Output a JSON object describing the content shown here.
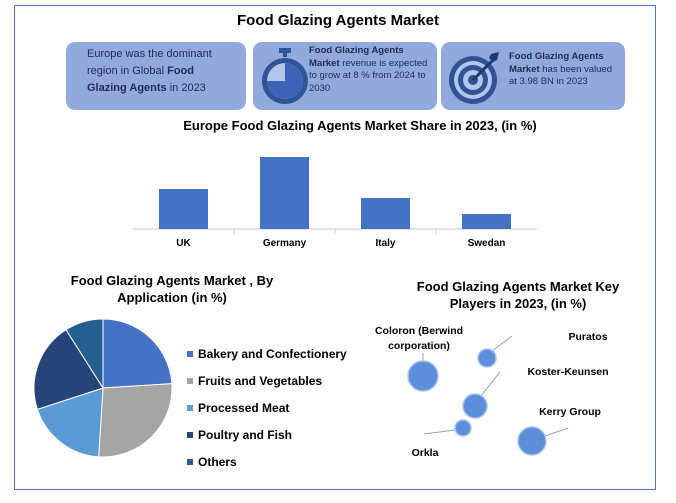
{
  "title": "Food Glazing Agents Market",
  "cards": {
    "europe": {
      "pre": "Europe was the dominant region in Global ",
      "bold": "Food Glazing Agents",
      "post": " in 2023"
    },
    "growth": {
      "bold": "Food Glazing Agents Market",
      "post": " revenue is expected to grow at 8 % from 2024 to 2030",
      "icon": "stopwatch-icon"
    },
    "value": {
      "bold": "Food Glazing Agents Market",
      "post": " has been valued at 3.98 BN in 2023",
      "icon": "target-icon"
    }
  },
  "colors": {
    "card_bg": "#92a9de",
    "bar": "#4472c4",
    "frame": "#4a7cc2",
    "bubble": "#5b8fd9"
  },
  "chart_data": [
    {
      "type": "bar",
      "title": "Europe Food Glazing Agents   Market Share in 2023,  (in %)",
      "categories": [
        "UK",
        "Germany",
        "Italy",
        "Swedan"
      ],
      "values": [
        40,
        72,
        31,
        15
      ],
      "ylim": [
        0,
        75
      ],
      "grid": false
    },
    {
      "type": "pie",
      "title": "Food Glazing Agents  Market , By Application  (in %)",
      "labels": [
        "Bakery and Confectionery",
        "Fruits and Vegetables",
        "Processed Meat",
        "Poultry and Fish",
        "Others"
      ],
      "values": [
        24,
        27,
        19,
        21,
        9
      ],
      "colors": [
        "#4472c4",
        "#a5a5a5",
        "#5b9bd5",
        "#264478",
        "#255e91"
      ],
      "legend": "right"
    },
    {
      "type": "scatter",
      "title": "Food Glazing Agents Market Key Players in 2023, (in %)",
      "labels": [
        "Coloron (Berwind corporation)",
        "Puratos",
        "Koster-Keunsen",
        "Kerry Group",
        "Orkla"
      ]
    }
  ]
}
